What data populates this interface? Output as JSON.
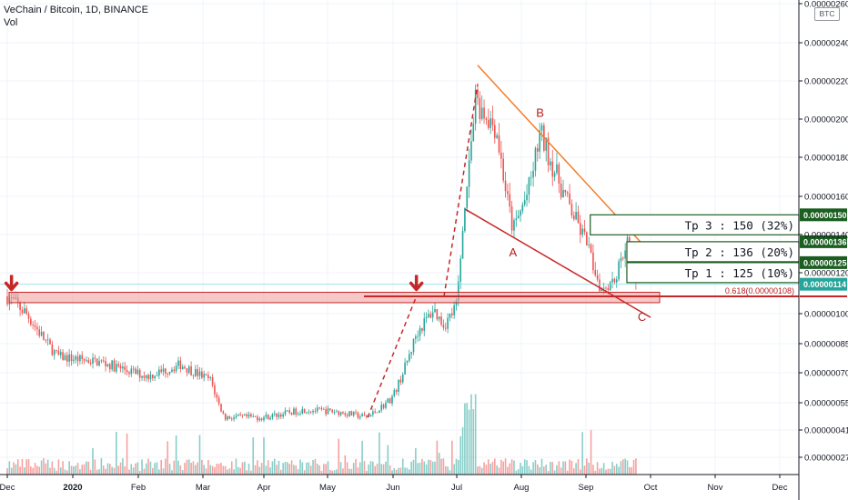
{
  "header": {
    "title": "VeChain / Bitcoin, 1D, BINANCE",
    "vol_label": "Vol"
  },
  "currency_badge": "BTC",
  "colors": {
    "up": "#26a69a",
    "down": "#ef5350",
    "red_line": "#c62828",
    "orange_line": "#f57c2b",
    "tp_green": "#1b5e20",
    "last_price": "#26a69a"
  },
  "chart_data": {
    "type": "candlestick",
    "title": "VeChain / Bitcoin, 1D, BINANCE",
    "x_tick_labels": [
      "Dec",
      "2020",
      "Feb",
      "Mar",
      "Apr",
      "May",
      "Jun",
      "Jul",
      "Aug",
      "Sep",
      "Oct",
      "Nov",
      "Dec"
    ],
    "y_tick_labels": [
      "0.00000260",
      "0.00000240",
      "0.00000220",
      "0.00000200",
      "0.00000180",
      "0.00000160",
      "0.00000140",
      "0.00000120",
      "0.00000100",
      "0.00000085",
      "0.00000070",
      "0.00000055",
      "0.00000041",
      "0.00000027"
    ],
    "y_scale": "log",
    "price_path": [
      {
        "x": "2019-12-01",
        "y": 1.08e-06
      },
      {
        "x": "2019-12-10",
        "y": 1e-06
      },
      {
        "x": "2019-12-25",
        "y": 7.8e-07
      },
      {
        "x": "2020-01-15",
        "y": 7.5e-07
      },
      {
        "x": "2020-02-05",
        "y": 6.8e-07
      },
      {
        "x": "2020-02-20",
        "y": 7.4e-07
      },
      {
        "x": "2020-03-05",
        "y": 6.6e-07
      },
      {
        "x": "2020-03-12",
        "y": 4.7e-07
      },
      {
        "x": "2020-04-01",
        "y": 4.7e-07
      },
      {
        "x": "2020-04-20",
        "y": 5.1e-07
      },
      {
        "x": "2020-05-05",
        "y": 5e-07
      },
      {
        "x": "2020-05-20",
        "y": 4.7e-07
      },
      {
        "x": "2020-06-01",
        "y": 5.8e-07
      },
      {
        "x": "2020-06-12",
        "y": 9e-07
      },
      {
        "x": "2020-06-20",
        "y": 1.02e-06
      },
      {
        "x": "2020-06-25",
        "y": 9.4e-07
      },
      {
        "x": "2020-07-01",
        "y": 1.04e-06
      },
      {
        "x": "2020-07-05",
        "y": 1.6e-06
      },
      {
        "x": "2020-07-10",
        "y": 2.1e-06
      },
      {
        "x": "2020-07-20",
        "y": 1.95e-06
      },
      {
        "x": "2020-07-28",
        "y": 1.42e-06
      },
      {
        "x": "2020-08-05",
        "y": 1.65e-06
      },
      {
        "x": "2020-08-10",
        "y": 1.93e-06
      },
      {
        "x": "2020-08-20",
        "y": 1.65e-06
      },
      {
        "x": "2020-09-01",
        "y": 1.36e-06
      },
      {
        "x": "2020-09-08",
        "y": 1.12e-06
      },
      {
        "x": "2020-09-15",
        "y": 1.18e-06
      },
      {
        "x": "2020-09-20",
        "y": 1.38e-06
      },
      {
        "x": "2020-09-25",
        "y": 1.14e-06
      }
    ],
    "last_price": 1.14e-06,
    "annotations": {
      "take_profits": [
        {
          "label": "Tp 1 : 125 (10%)",
          "price_tag": "0.00000125",
          "price": 1.25e-06
        },
        {
          "label": "Tp 2 : 136 (20%)",
          "price_tag": "0.00000136",
          "price": 1.36e-06
        },
        {
          "label": "Tp 3 : 150 (32%)",
          "price_tag": "0.00000150",
          "price": 1.5e-06
        }
      ],
      "fib_label": "0.618(0.00000108)",
      "support_zone": [
        1.05e-06,
        1.1e-06
      ],
      "waves": [
        "A",
        "B",
        "C"
      ],
      "current_price_tag": "0.00000114"
    }
  }
}
